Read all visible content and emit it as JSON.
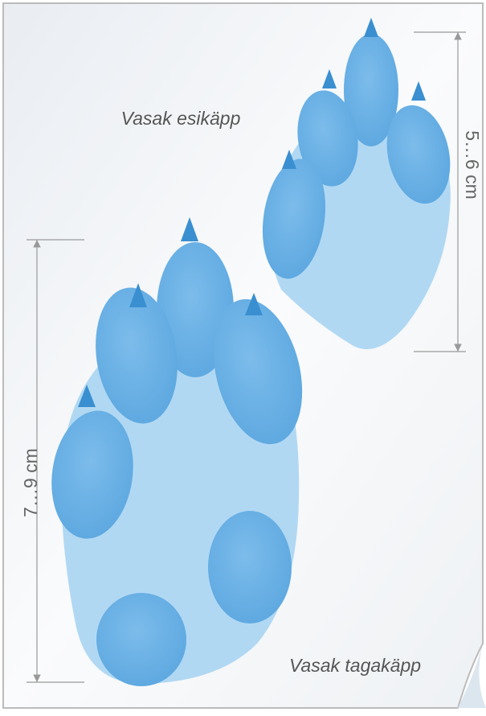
{
  "labels": {
    "front_paw": "Vasak esikäpp",
    "front_size": "5…6 cm",
    "hind_paw": "Vasak tagakäpp",
    "hind_size": "7…9 cm"
  }
}
